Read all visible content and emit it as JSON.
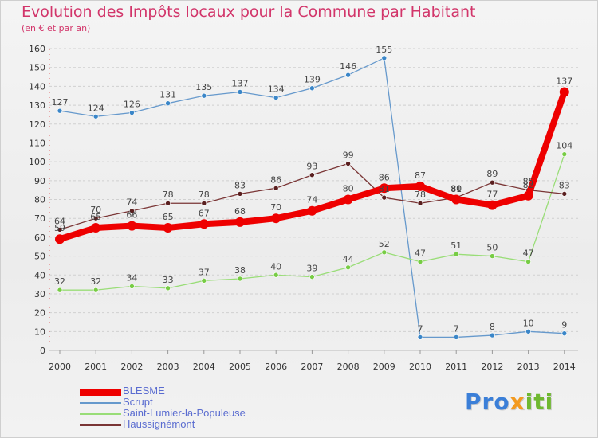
{
  "title": "Evolution des Impôts locaux pour la Commune par Habitant",
  "subtitle": "(en € et par an)",
  "logo": {
    "part1": "Pro",
    "part2": "x",
    "part3": "iti"
  },
  "chart_data": {
    "type": "line",
    "x": [
      "2000",
      "2001",
      "2002",
      "2003",
      "2004",
      "2005",
      "2006",
      "2007",
      "2008",
      "2009",
      "2010",
      "2011",
      "2012",
      "2013",
      "2014"
    ],
    "ylim": [
      0,
      160
    ],
    "yticks": [
      0,
      10,
      20,
      30,
      40,
      50,
      60,
      70,
      80,
      90,
      100,
      110,
      120,
      130,
      140,
      150,
      160
    ],
    "grid": "horizontal dashed",
    "legend_position": "bottom-left",
    "series": [
      {
        "name": "Scrupt",
        "color": "#6699cc",
        "marker": "#3a86c8",
        "values": [
          127,
          124,
          126,
          131,
          135,
          137,
          134,
          139,
          146,
          155,
          7,
          7,
          8,
          10,
          9
        ]
      },
      {
        "name": "Saint-Lumier-la-Populeuse",
        "color": "#99dd77",
        "marker": "#77cc44",
        "values": [
          32,
          32,
          34,
          33,
          37,
          38,
          40,
          39,
          44,
          52,
          47,
          51,
          50,
          47,
          104
        ]
      },
      {
        "name": "Haussignémont",
        "color": "#7a3535",
        "marker": "#5a1f1f",
        "values": [
          64,
          70,
          74,
          78,
          78,
          83,
          86,
          93,
          99,
          81,
          78,
          81,
          89,
          85,
          83
        ]
      },
      {
        "name": "BLESME",
        "color": "#ee0000",
        "marker": "#ee0000",
        "values": [
          59,
          65,
          66,
          65,
          67,
          68,
          70,
          74,
          80,
          86,
          87,
          80,
          77,
          82,
          137
        ]
      }
    ]
  }
}
